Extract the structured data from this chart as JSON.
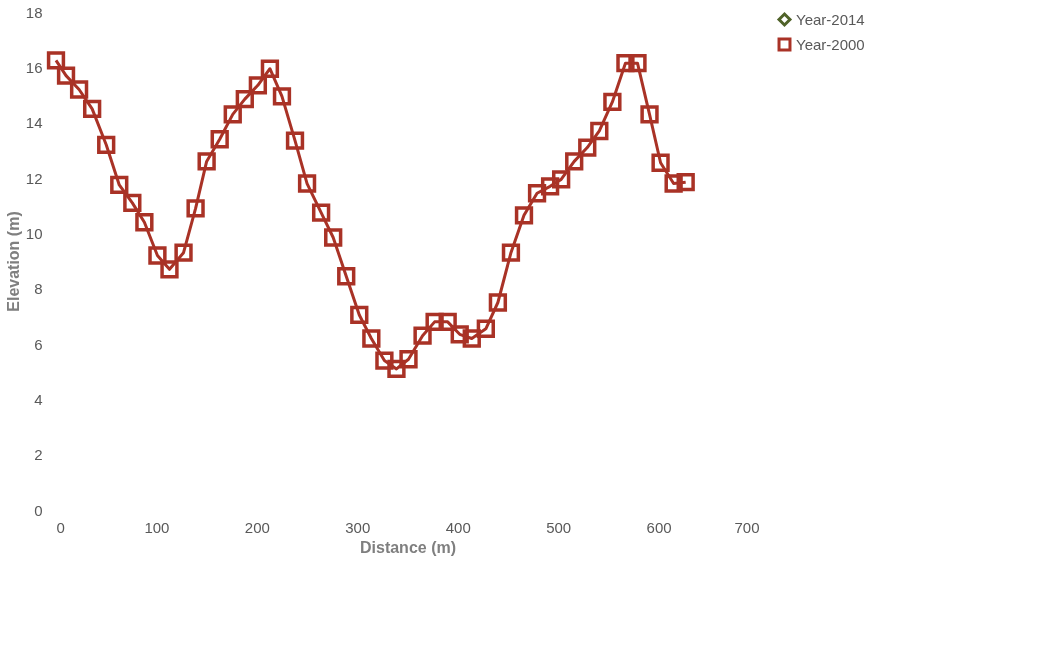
{
  "chart_data": {
    "type": "line",
    "xlabel": "Distance (m)",
    "ylabel": "Elevation (m)",
    "x": [
      0,
      10,
      23,
      36,
      50,
      63,
      76,
      88,
      101,
      113,
      127,
      139,
      150,
      163,
      176,
      188,
      201,
      213,
      225,
      238,
      250,
      264,
      276,
      289,
      302,
      314,
      327,
      339,
      351,
      365,
      377,
      390,
      402,
      414,
      428,
      440,
      453,
      466,
      479,
      492,
      503,
      516,
      529,
      541,
      554,
      567,
      579,
      591,
      602,
      615,
      627
    ],
    "series": [
      {
        "name": "Year-2014",
        "color": "#4f6228",
        "marker": "diamond",
        "values": [
          null,
          null,
          null,
          null,
          null,
          null,
          null,
          null,
          null,
          null,
          null,
          null,
          null,
          null,
          null,
          null,
          null,
          null,
          null,
          null,
          null,
          null,
          null,
          null,
          null,
          null,
          null,
          null,
          null,
          null,
          null,
          null,
          null,
          null,
          null,
          null,
          null,
          null,
          null,
          null,
          null,
          null,
          null,
          null,
          null,
          null,
          null,
          null,
          null,
          null,
          null
        ]
      },
      {
        "name": "Year-2000",
        "color": "#a93226",
        "marker": "square",
        "values": [
          16.25,
          15.7,
          15.2,
          14.5,
          13.2,
          11.75,
          11.1,
          10.4,
          9.2,
          8.7,
          9.3,
          10.9,
          12.6,
          13.4,
          14.3,
          14.85,
          15.35,
          15.95,
          14.95,
          13.35,
          11.8,
          10.75,
          9.85,
          8.45,
          7.05,
          6.2,
          5.4,
          5.1,
          5.45,
          6.3,
          6.8,
          6.8,
          6.35,
          6.2,
          6.55,
          7.5,
          9.3,
          10.65,
          11.45,
          11.7,
          11.95,
          12.6,
          13.1,
          13.7,
          14.75,
          16.15,
          16.15,
          14.3,
          12.55,
          11.8,
          11.85
        ]
      }
    ],
    "xlim": [
      0,
      700
    ],
    "xticks": [
      0,
      100,
      200,
      300,
      400,
      500,
      600,
      700
    ],
    "ylim": [
      0,
      18
    ],
    "yticks": [
      0,
      2,
      4,
      6,
      8,
      10,
      12,
      14,
      16,
      18
    ],
    "grid": false,
    "legend": "right",
    "line_style": "solid"
  }
}
